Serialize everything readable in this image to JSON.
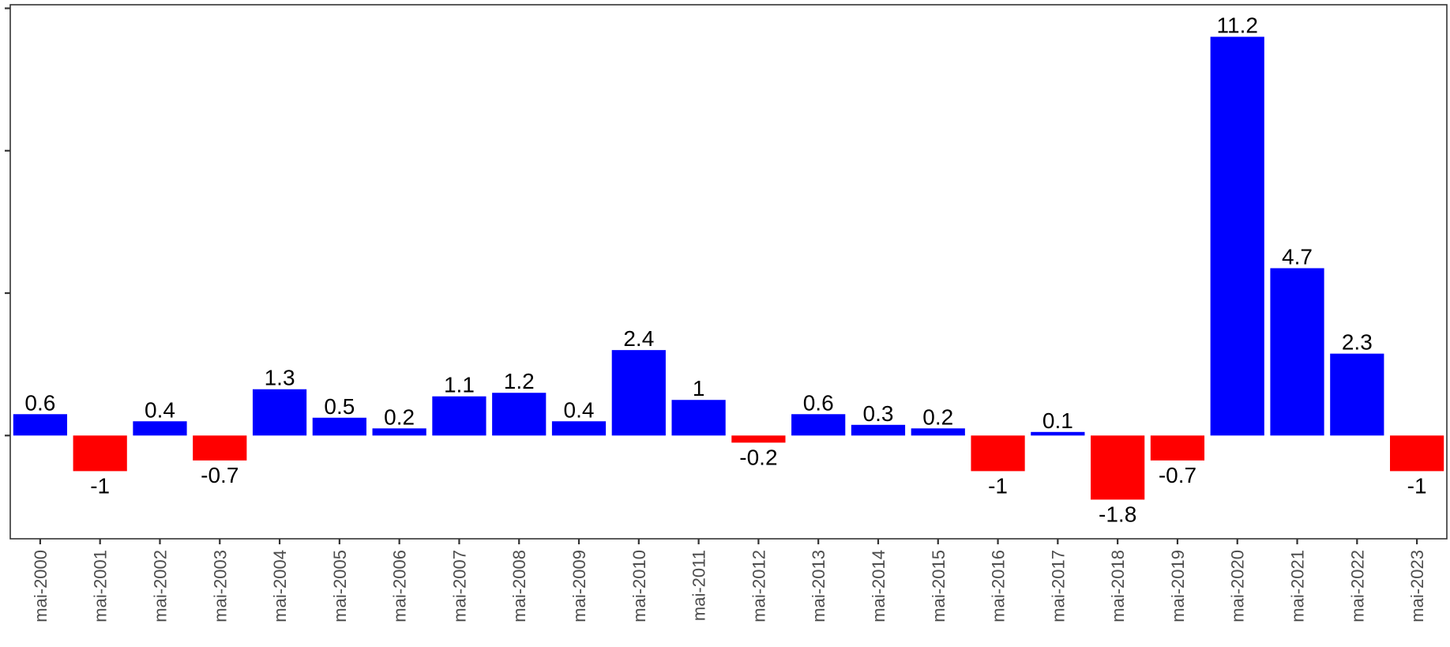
{
  "chart_data": {
    "type": "bar",
    "title": "",
    "xlabel": "",
    "ylabel": "",
    "categories": [
      "mai-2000",
      "mai-2001",
      "mai-2002",
      "mai-2003",
      "mai-2004",
      "mai-2005",
      "mai-2006",
      "mai-2007",
      "mai-2008",
      "mai-2009",
      "mai-2010",
      "mai-2011",
      "mai-2012",
      "mai-2013",
      "mai-2014",
      "mai-2015",
      "mai-2016",
      "mai-2017",
      "mai-2018",
      "mai-2019",
      "mai-2020",
      "mai-2021",
      "mai-2022",
      "mai-2023"
    ],
    "values": [
      0.6,
      -1,
      0.4,
      -0.7,
      1.3,
      0.5,
      0.2,
      1.1,
      1.2,
      0.4,
      2.4,
      1,
      -0.2,
      0.6,
      0.3,
      0.2,
      -1,
      0.1,
      -1.8,
      -0.7,
      11.2,
      4.7,
      2.3,
      -1
    ],
    "labels": [
      "0.6",
      "-1",
      "0.4",
      "-0.7",
      "1.3",
      "0.5",
      "0.2",
      "1.1",
      "1.2",
      "0.4",
      "2.4",
      "1",
      "-0.2",
      "0.6",
      "0.3",
      "0.2",
      "-1",
      "0.1",
      "-1.8",
      "-0.7",
      "11.2",
      "4.7",
      "2.3",
      "-1"
    ],
    "ylim": [
      -2.9,
      12.1
    ],
    "y_ticks": [
      0,
      4,
      8,
      12
    ],
    "y_tick_labels_visible": false,
    "grid": false,
    "legend": "none",
    "colors": {
      "positive": "#0000ff",
      "negative": "#ff0000",
      "axis": "#333333",
      "text": "#000000",
      "tick_text": "#4d4d4d"
    }
  }
}
